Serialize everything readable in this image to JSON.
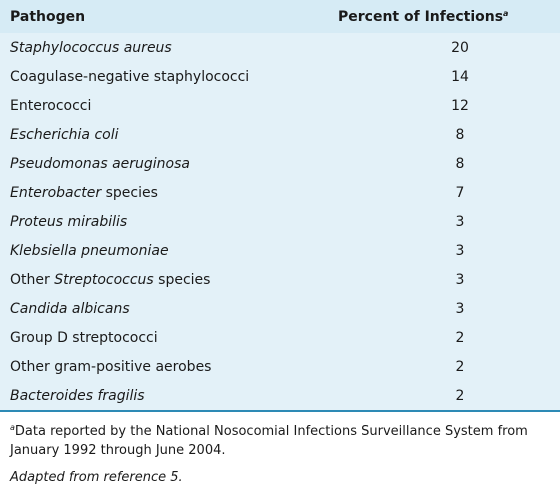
{
  "table": {
    "headers": {
      "pathogen": "Pathogen",
      "percent": "Percent of Infections",
      "percent_marker": "a"
    },
    "rows": [
      {
        "parts": [
          {
            "text": "Staphylococcus aureus",
            "italic": true
          }
        ],
        "percent": "20"
      },
      {
        "parts": [
          {
            "text": "Coagulase-negative staphylococci",
            "italic": false
          }
        ],
        "percent": "14"
      },
      {
        "parts": [
          {
            "text": "Enterococci",
            "italic": false
          }
        ],
        "percent": "12"
      },
      {
        "parts": [
          {
            "text": "Escherichia coli",
            "italic": true
          }
        ],
        "percent": "8"
      },
      {
        "parts": [
          {
            "text": "Pseudomonas aeruginosa",
            "italic": true
          }
        ],
        "percent": "8"
      },
      {
        "parts": [
          {
            "text": "Enterobacter",
            "italic": true
          },
          {
            "text": " species",
            "italic": false
          }
        ],
        "percent": "7"
      },
      {
        "parts": [
          {
            "text": "Proteus mirabilis",
            "italic": true
          }
        ],
        "percent": "3"
      },
      {
        "parts": [
          {
            "text": "Klebsiella pneumoniae",
            "italic": true
          }
        ],
        "percent": "3"
      },
      {
        "parts": [
          {
            "text": "Other ",
            "italic": false
          },
          {
            "text": "Streptococcus",
            "italic": true
          },
          {
            "text": " species",
            "italic": false
          }
        ],
        "percent": "3"
      },
      {
        "parts": [
          {
            "text": "Candida albicans",
            "italic": true
          }
        ],
        "percent": "3"
      },
      {
        "parts": [
          {
            "text": "Group D streptococci",
            "italic": false
          }
        ],
        "percent": "2"
      },
      {
        "parts": [
          {
            "text": "Other gram-positive aerobes",
            "italic": false
          }
        ],
        "percent": "2"
      },
      {
        "parts": [
          {
            "text": "Bacteroides fragilis",
            "italic": true
          }
        ],
        "percent": "2"
      }
    ]
  },
  "footnotes": {
    "marker": "a",
    "note": "Data reported by the National Nosocomial Infections Surveillance System from January 1992 through June 2004.",
    "source": "Adapted from reference 5."
  }
}
